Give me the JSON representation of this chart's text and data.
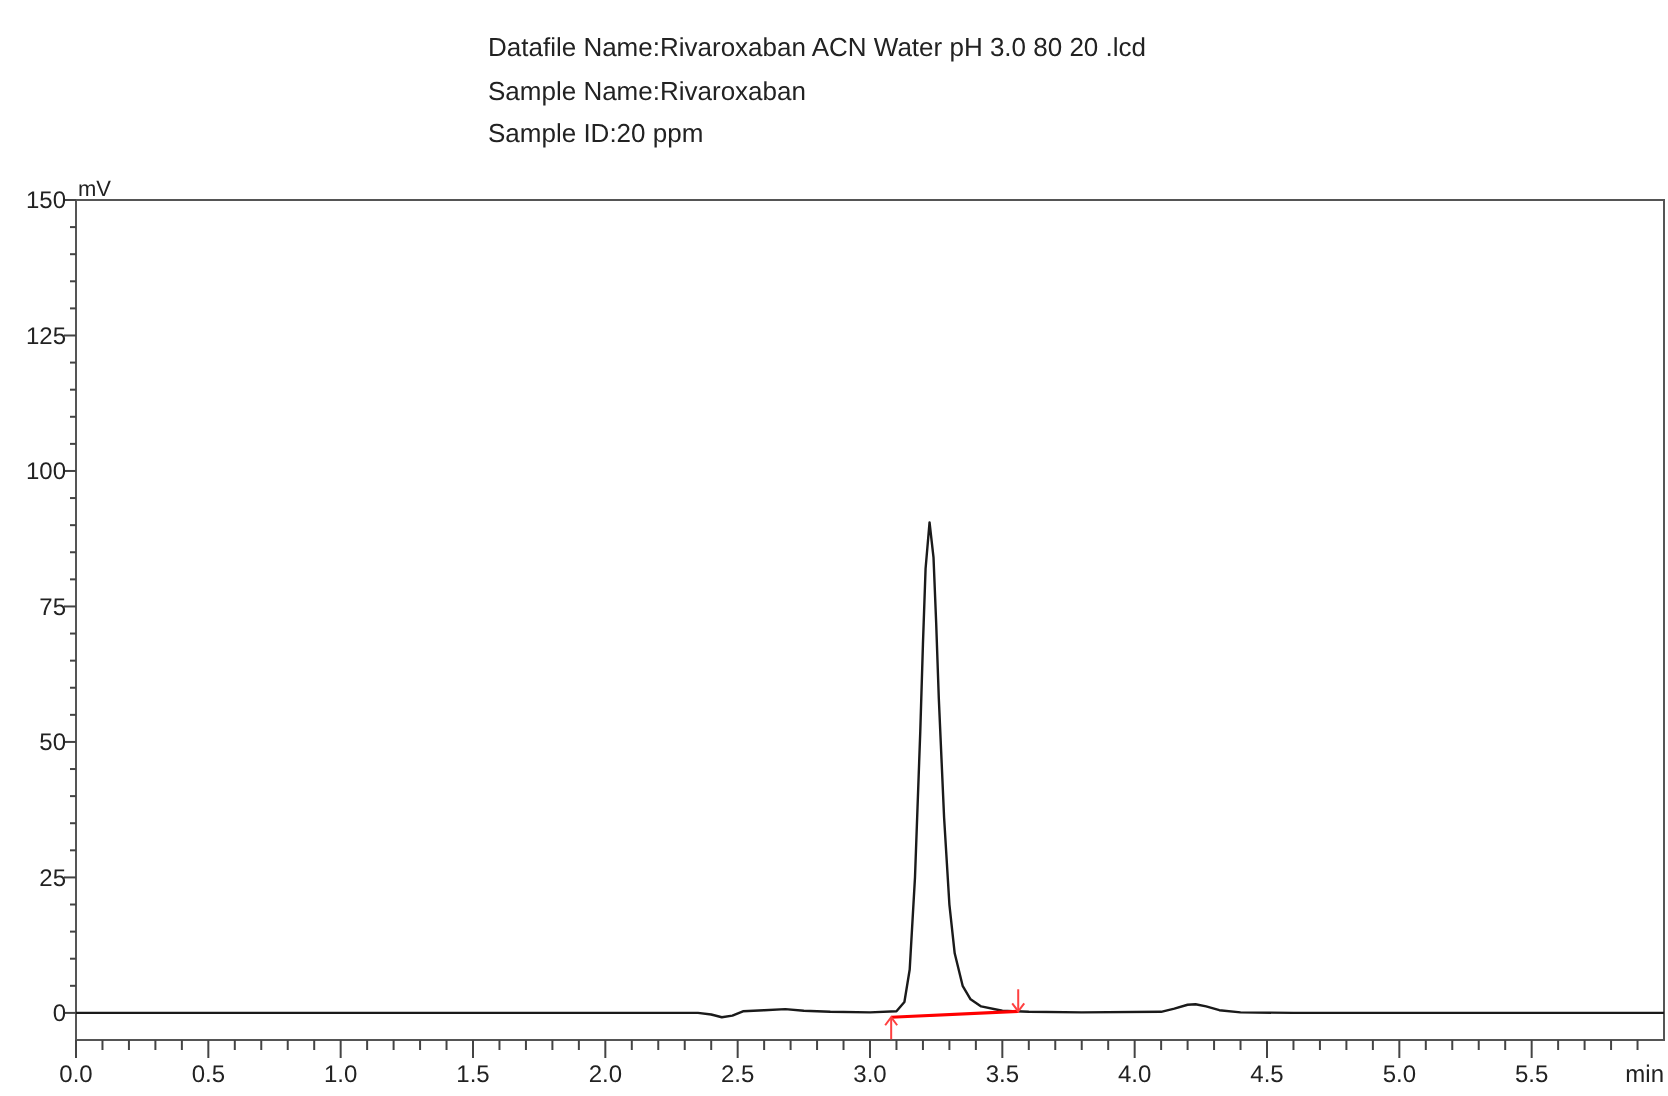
{
  "chart_data": {
    "type": "line",
    "title": "Datafile Name:Rivaroxaban ACN Water pH 3.0  80 20 .lcd",
    "subtitle": "Sample Name:Rivaroxaban\nSample ID:20 ppm",
    "xlabel": "min",
    "ylabel": "mV",
    "xlim": [
      0,
      6
    ],
    "ylim": [
      -5,
      150
    ],
    "xticks": [
      {
        "value": 0,
        "label": "0.0"
      },
      {
        "value": 0.1,
        "label": null
      },
      {
        "value": 0.2,
        "label": null
      },
      {
        "value": 0.3,
        "label": null
      },
      {
        "value": 0.4,
        "label": null
      },
      {
        "value": 0.5,
        "label": "0.5"
      },
      {
        "value": 0.6,
        "label": null
      },
      {
        "value": 0.7,
        "label": null
      },
      {
        "value": 0.8,
        "label": null
      },
      {
        "value": 0.9,
        "label": null
      },
      {
        "value": 1,
        "label": "1.0"
      },
      {
        "value": 1.1,
        "label": null
      },
      {
        "value": 1.2,
        "label": null
      },
      {
        "value": 1.3,
        "label": null
      },
      {
        "value": 1.4,
        "label": null
      },
      1.5,
      {
        "value": 1.6,
        "label": null
      },
      {
        "value": 1.7,
        "label": null
      },
      {
        "value": 1.8,
        "label": null
      },
      {
        "value": 1.9,
        "label": null
      },
      {
        "value": 2,
        "label": "2.0"
      },
      {
        "value": 2.1,
        "label": null
      },
      {
        "value": 2.2,
        "label": null
      },
      {
        "value": 2.3,
        "label": null
      },
      {
        "value": 2.4,
        "label": null
      },
      2.5,
      {
        "value": 2.6,
        "label": null
      },
      {
        "value": 2.7,
        "label": null
      },
      {
        "value": 2.8,
        "label": null
      },
      {
        "value": 2.9,
        "label": null
      },
      {
        "value": 3,
        "label": "3.0"
      },
      {
        "value": 3.1,
        "label": null
      },
      {
        "value": 3.2,
        "label": null
      },
      {
        "value": 3.3,
        "label": null
      },
      {
        "value": 3.4,
        "label": null
      },
      3.5,
      {
        "value": 3.6,
        "label": null
      },
      {
        "value": 3.7,
        "label": null
      },
      {
        "value": 3.8,
        "label": null
      },
      {
        "value": 3.9,
        "label": null
      },
      {
        "value": 4,
        "label": "4.0"
      },
      {
        "value": 4.1,
        "label": null
      },
      {
        "value": 4.2,
        "label": null
      },
      {
        "value": 4.3,
        "label": null
      },
      {
        "value": 4.4,
        "label": null
      },
      4.5,
      {
        "value": 4.6,
        "label": null
      },
      {
        "value": 4.7,
        "label": null
      },
      {
        "value": 4.8,
        "label": null
      },
      {
        "value": 4.9,
        "label": null
      },
      {
        "value": 5,
        "label": "5.0"
      },
      {
        "value": 5.1,
        "label": null
      },
      {
        "value": 5.2,
        "label": null
      },
      {
        "value": 5.3,
        "label": null
      },
      {
        "value": 5.4,
        "label": null
      },
      5.5,
      {
        "value": 5.6,
        "label": null
      },
      {
        "value": 5.7,
        "label": null
      },
      {
        "value": 5.8,
        "label": null
      },
      {
        "value": 5.9,
        "label": null
      }
    ],
    "yticks": [
      0,
      {
        "value": 5,
        "label": null
      },
      {
        "value": 10,
        "label": null
      },
      {
        "value": 15,
        "label": null
      },
      {
        "value": 20,
        "label": null
      },
      25,
      {
        "value": 30,
        "label": null
      },
      {
        "value": 35,
        "label": null
      },
      {
        "value": 40,
        "label": null
      },
      {
        "value": 45,
        "label": null
      },
      50,
      {
        "value": 55,
        "label": null
      },
      {
        "value": 60,
        "label": null
      },
      {
        "value": 65,
        "label": null
      },
      {
        "value": 70,
        "label": null
      },
      75,
      {
        "value": 80,
        "label": null
      },
      {
        "value": 85,
        "label": null
      },
      {
        "value": 90,
        "label": null
      },
      {
        "value": 95,
        "label": null
      },
      100,
      {
        "value": 105,
        "label": null
      },
      {
        "value": 110,
        "label": null
      },
      {
        "value": 115,
        "label": null
      },
      {
        "value": 120,
        "label": null
      },
      125,
      {
        "value": 130,
        "label": null
      },
      {
        "value": 135,
        "label": null
      },
      {
        "value": 140,
        "label": null
      },
      {
        "value": 145,
        "label": null
      },
      150
    ],
    "series": [
      {
        "color": "#1a1a1a",
        "x": [
          0,
          1,
          2,
          2.35,
          2.4,
          2.44,
          2.48,
          2.52,
          2.6,
          2.68,
          2.75,
          2.85,
          3.0,
          3.1,
          3.13,
          3.15,
          3.17,
          3.19,
          3.2,
          3.21,
          3.225,
          3.24,
          3.25,
          3.26,
          3.28,
          3.3,
          3.32,
          3.35,
          3.38,
          3.42,
          3.5,
          3.6,
          3.8,
          4.1,
          4.15,
          4.2,
          4.23,
          4.27,
          4.32,
          4.4,
          4.6,
          5,
          5.5,
          6
        ],
        "values": [
          0,
          0,
          0,
          0,
          -0.3,
          -0.8,
          -0.5,
          0.3,
          0.5,
          0.7,
          0.4,
          0.2,
          0.1,
          0.3,
          2,
          8,
          25,
          52,
          68,
          82,
          90.5,
          84,
          72,
          58,
          36,
          20,
          11,
          5,
          2.5,
          1.2,
          0.4,
          0.2,
          0.1,
          0.2,
          0.8,
          1.5,
          1.6,
          1.2,
          0.5,
          0.1,
          0,
          0,
          0,
          0
        ]
      },
      {
        "color": "#ff0000",
        "x": [
          3.08,
          3.56
        ],
        "values": [
          -0.8,
          0.3
        ]
      }
    ]
  }
}
